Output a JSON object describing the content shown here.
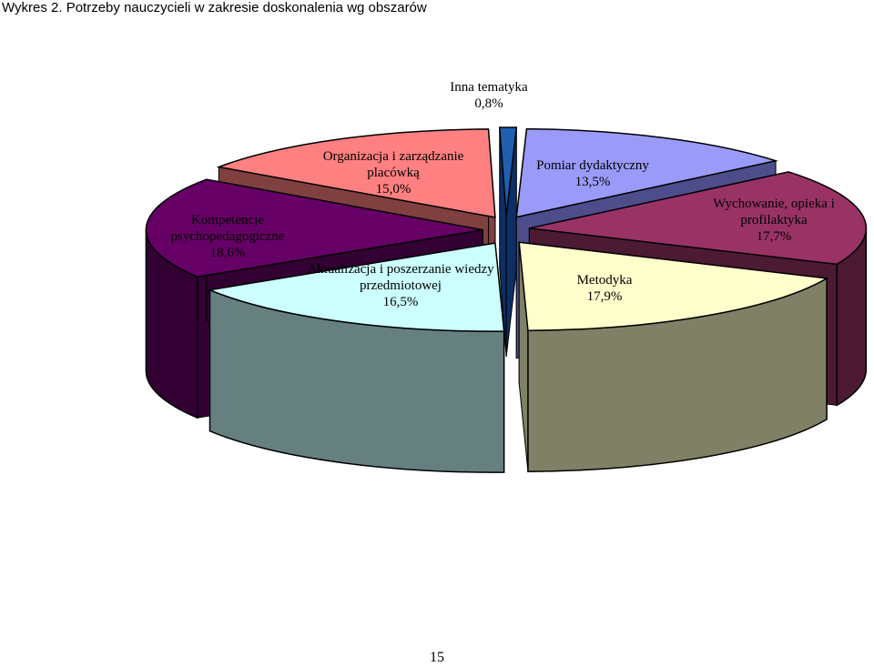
{
  "caption": "Wykres 2. Potrzeby nauczycieli w zakresie doskonalenia wg obszarów",
  "page_number": "15",
  "chart_data": {
    "type": "pie",
    "title": "",
    "exploded": true,
    "three_d": true,
    "slices": [
      {
        "name": "Inna tematyka",
        "value": 0.8,
        "value_label": "0,8%",
        "label_lines": [
          "Inna tematyka",
          "0,8%"
        ],
        "top_color": "#1f5fb0",
        "side_color": "#0d2f66"
      },
      {
        "name": "Pomiar dydaktyczny",
        "value": 13.5,
        "value_label": "13,5%",
        "label_lines": [
          "Pomiar dydaktyczny",
          "13,5%"
        ],
        "top_color": "#9a9af8",
        "side_color": "#4d4d8c"
      },
      {
        "name": "Wychowanie, opieka i profilaktyka",
        "value": 17.7,
        "value_label": "17,7%",
        "label_lines": [
          "Wychowanie, opieka i",
          "profilaktyka",
          "17,7%"
        ],
        "top_color": "#993366",
        "side_color": "#4c1a33"
      },
      {
        "name": "Metodyka",
        "value": 17.9,
        "value_label": "17,9%",
        "label_lines": [
          "Metodyka",
          "17,9%"
        ],
        "top_color": "#ffffcc",
        "side_color": "#808066"
      },
      {
        "name": "Aktualizacja i poszerzanie wiedzy przedmiotowej",
        "value": 16.5,
        "value_label": "16,5%",
        "label_lines": [
          "Aktualizacja i poszerzanie wiedzy",
          "przedmiotowej",
          "16,5%"
        ],
        "top_color": "#ccffff",
        "side_color": "#668080"
      },
      {
        "name": "Kompetencje psychopedagogiczne",
        "value": 18.6,
        "value_label": "18,6%",
        "label_lines": [
          "Kompetencje",
          "psychopedagogiczne",
          "18,6%"
        ],
        "top_color": "#660066",
        "side_color": "#330033"
      },
      {
        "name": "Organizacja i zarządzanie placówką",
        "value": 15.0,
        "value_label": "15,0%",
        "label_lines": [
          "Organizacja i zarządzanie",
          "placówką",
          "15,0%"
        ],
        "top_color": "#ff8080",
        "side_color": "#804040"
      }
    ]
  }
}
